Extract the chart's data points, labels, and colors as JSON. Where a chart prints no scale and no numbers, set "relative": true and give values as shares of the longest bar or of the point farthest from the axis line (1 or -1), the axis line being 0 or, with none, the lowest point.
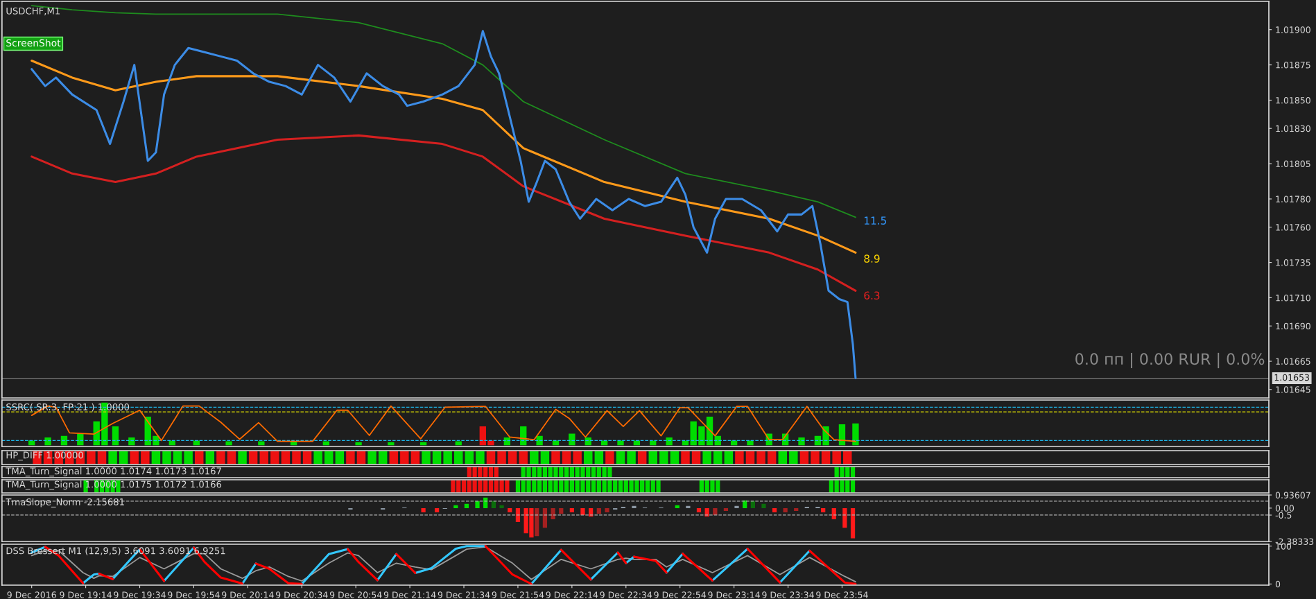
{
  "chart_data": [
    {
      "type": "line",
      "title": "USDCHF,M1",
      "xlim": [
        "2016-12-09T18:43",
        "2016-12-10T02:32"
      ],
      "ylim": [
        1.01639,
        1.0192
      ],
      "tick_labels": "y",
      "yticks": [
        {
          "value": 1.019,
          "label": "1.01900"
        },
        {
          "value": 1.01875,
          "label": "1.01875"
        },
        {
          "value": 1.0185,
          "label": "1.01850"
        },
        {
          "value": 1.0183,
          "label": "1.01830"
        },
        {
          "value": 1.01805,
          "label": "1.01805"
        },
        {
          "value": 1.0178,
          "label": "1.01780"
        },
        {
          "value": 1.0176,
          "label": "1.01760"
        },
        {
          "value": 1.01735,
          "label": "1.01735"
        },
        {
          "value": 1.0171,
          "label": "1.01710"
        },
        {
          "value": 1.0169,
          "label": "1.01690"
        },
        {
          "value": 1.01665,
          "label": "1.01665"
        },
        {
          "value": 1.01645,
          "label": "1.01645"
        }
      ],
      "series": [
        {
          "color": "#1e8c1e",
          "x": [
            "2016-12-09T18:54",
            "2016-12-09T19:09",
            "2016-12-09T19:25",
            "2016-12-09T19:40",
            "2016-12-09T19:55",
            "2016-12-09T20:25",
            "2016-12-09T20:55",
            "2016-12-09T21:26",
            "2016-12-09T21:41",
            "2016-12-09T21:56",
            "2016-12-09T22:26",
            "2016-12-09T22:56",
            "2016-12-09T23:27",
            "2016-12-09T23:45",
            "2016-12-09T23:59"
          ],
          "values": [
            1.01917,
            1.01914,
            1.01912,
            1.01911,
            1.01911,
            1.01911,
            1.01905,
            1.0189,
            1.01875,
            1.01849,
            1.01822,
            1.01798,
            1.01786,
            1.01778,
            1.01767
          ]
        },
        {
          "color": "#ff9a1a",
          "x": [
            "2016-12-09T18:54",
            "2016-12-09T19:09",
            "2016-12-09T19:25",
            "2016-12-09T19:40",
            "2016-12-09T19:55",
            "2016-12-09T20:25",
            "2016-12-09T20:55",
            "2016-12-09T21:26",
            "2016-12-09T21:41",
            "2016-12-09T21:56",
            "2016-12-09T22:26",
            "2016-12-09T22:56",
            "2016-12-09T23:27",
            "2016-12-09T23:45",
            "2016-12-09T23:59"
          ],
          "values": [
            1.01878,
            1.01866,
            1.01857,
            1.01863,
            1.01867,
            1.01867,
            1.0186,
            1.01851,
            1.01843,
            1.01816,
            1.01792,
            1.01778,
            1.01766,
            1.01754,
            1.01742
          ]
        },
        {
          "color": "#d42020",
          "x": [
            "2016-12-09T18:54",
            "2016-12-09T19:09",
            "2016-12-09T19:25",
            "2016-12-09T19:40",
            "2016-12-09T19:55",
            "2016-12-09T20:25",
            "2016-12-09T20:55",
            "2016-12-09T21:26",
            "2016-12-09T21:41",
            "2016-12-09T21:56",
            "2016-12-09T22:26",
            "2016-12-09T22:56",
            "2016-12-09T23:27",
            "2016-12-09T23:45",
            "2016-12-09T23:59"
          ],
          "values": [
            1.0181,
            1.01798,
            1.01792,
            1.01798,
            1.0181,
            1.01822,
            1.01825,
            1.01819,
            1.0181,
            1.01789,
            1.01766,
            1.01754,
            1.01742,
            1.0173,
            1.01715
          ]
        },
        {
          "color": "#3c8ce6",
          "x": [
            "2016-12-09T18:54",
            "2016-12-09T18:59",
            "2016-12-09T19:03",
            "2016-12-09T19:09",
            "2016-12-09T19:18",
            "2016-12-09T19:23",
            "2016-12-09T19:28",
            "2016-12-09T19:32",
            "2016-12-09T19:37",
            "2016-12-09T19:40",
            "2016-12-09T19:43",
            "2016-12-09T19:47",
            "2016-12-09T19:52",
            "2016-12-09T19:58",
            "2016-12-09T20:04",
            "2016-12-09T20:10",
            "2016-12-09T20:16",
            "2016-12-09T20:22",
            "2016-12-09T20:28",
            "2016-12-09T20:34",
            "2016-12-09T20:40",
            "2016-12-09T20:46",
            "2016-12-09T20:52",
            "2016-12-09T20:58",
            "2016-12-09T21:04",
            "2016-12-09T21:10",
            "2016-12-09T21:13",
            "2016-12-09T21:19",
            "2016-12-09T21:26",
            "2016-12-09T21:32",
            "2016-12-09T21:38",
            "2016-12-09T21:41",
            "2016-12-09T21:44",
            "2016-12-09T21:47",
            "2016-12-09T21:50",
            "2016-12-09T21:55",
            "2016-12-09T21:58",
            "2016-12-09T22:01",
            "2016-12-09T22:04",
            "2016-12-09T22:08",
            "2016-12-09T22:13",
            "2016-12-09T22:17",
            "2016-12-09T22:23",
            "2016-12-09T22:29",
            "2016-12-09T22:35",
            "2016-12-09T22:41",
            "2016-12-09T22:47",
            "2016-12-09T22:53",
            "2016-12-09T22:56",
            "2016-12-09T22:59",
            "2016-12-09T23:04",
            "2016-12-09T23:07",
            "2016-12-09T23:11",
            "2016-12-09T23:17",
            "2016-12-09T23:24",
            "2016-12-09T23:30",
            "2016-12-09T23:34",
            "2016-12-09T23:39",
            "2016-12-09T23:43",
            "2016-12-09T23:46",
            "2016-12-09T23:49",
            "2016-12-09T23:53",
            "2016-12-09T23:56",
            "2016-12-09T23:58",
            "2016-12-09T23:59"
          ],
          "values": [
            1.01872,
            1.0186,
            1.01866,
            1.01854,
            1.01843,
            1.01819,
            1.01849,
            1.01875,
            1.01807,
            1.01813,
            1.01854,
            1.01875,
            1.01887,
            1.01884,
            1.01881,
            1.01878,
            1.01869,
            1.01863,
            1.0186,
            1.01854,
            1.01875,
            1.01866,
            1.01849,
            1.01869,
            1.0186,
            1.01854,
            1.01846,
            1.01849,
            1.01854,
            1.0186,
            1.01875,
            1.01899,
            1.01881,
            1.01869,
            1.01846,
            1.01807,
            1.01778,
            1.01792,
            1.01807,
            1.01801,
            1.01778,
            1.01766,
            1.0178,
            1.01772,
            1.0178,
            1.01775,
            1.01778,
            1.01795,
            1.01783,
            1.0176,
            1.01742,
            1.01766,
            1.0178,
            1.0178,
            1.01772,
            1.01757,
            1.01769,
            1.01769,
            1.01775,
            1.01748,
            1.01715,
            1.01709,
            1.01707,
            1.01677,
            1.01653
          ]
        }
      ],
      "ref_lines": [
        {
          "axis": "y",
          "value": 1.01653,
          "label": "1.01653",
          "color": "#7a7a7a",
          "line_style": "solid"
        }
      ],
      "annotations": [
        "ScreenShot",
        "0.0 пп | 0.00 RUR | 0.0%",
        "11.5",
        "8.9",
        "6.3"
      ]
    },
    {
      "type": "bar",
      "title": "SSRC( SR:3, FP:21 ) 1.0000",
      "relative": true,
      "xlim": [
        "2016-12-09T18:43",
        "2016-12-10T02:32"
      ],
      "tick_labels": false,
      "series": [
        {
          "x": [
            "2016-12-09T18:54",
            "2016-12-09T19:00",
            "2016-12-09T19:06",
            "2016-12-09T19:12",
            "2016-12-09T19:18",
            "2016-12-09T19:21",
            "2016-12-09T19:25",
            "2016-12-09T19:31",
            "2016-12-09T19:37",
            "2016-12-09T19:40",
            "2016-12-09T19:46",
            "2016-12-09T19:55",
            "2016-12-09T20:07",
            "2016-12-09T20:19",
            "2016-12-09T20:31",
            "2016-12-09T20:43",
            "2016-12-09T20:55",
            "2016-12-09T21:07",
            "2016-12-09T21:19",
            "2016-12-09T21:32",
            "2016-12-09T21:41",
            "2016-12-09T21:44",
            "2016-12-09T21:50",
            "2016-12-09T21:56",
            "2016-12-09T22:02",
            "2016-12-09T22:08",
            "2016-12-09T22:14",
            "2016-12-09T22:20",
            "2016-12-09T22:26",
            "2016-12-09T22:32",
            "2016-12-09T22:38",
            "2016-12-09T22:44",
            "2016-12-09T22:50",
            "2016-12-09T22:56",
            "2016-12-09T22:59",
            "2016-12-09T23:02",
            "2016-12-09T23:05",
            "2016-12-09T23:08",
            "2016-12-09T23:14",
            "2016-12-09T23:20",
            "2016-12-09T23:27",
            "2016-12-09T23:33",
            "2016-12-09T23:39",
            "2016-12-09T23:45",
            "2016-12-09T23:48",
            "2016-12-09T23:54",
            "2016-12-09T23:59"
          ],
          "values": [
            0.11,
            0.18,
            0.22,
            0.27,
            0.56,
            1,
            0.44,
            0.18,
            0.67,
            0.22,
            0.11,
            0.11,
            0.09,
            0.09,
            0.09,
            0.09,
            0.07,
            0.07,
            0.07,
            0.09,
            0.44,
            0.11,
            0.18,
            0.44,
            0.22,
            0.11,
            0.27,
            0.18,
            0.11,
            0.11,
            0.11,
            0.11,
            0.18,
            0.11,
            0.56,
            0.44,
            0.67,
            0.22,
            0.11,
            0.11,
            0.27,
            0.27,
            0.18,
            0.22,
            0.44,
            0.49,
            0.51
          ],
          "colors": [
            "#00dd00",
            "#00dd00",
            "#00dd00",
            "#00dd00",
            "#00dd00",
            "#00dd00",
            "#00dd00",
            "#00dd00",
            "#00dd00",
            "#00dd00",
            "#00dd00",
            "#00dd00",
            "#00dd00",
            "#00dd00",
            "#00dd00",
            "#00dd00",
            "#00dd00",
            "#00dd00",
            "#00dd00",
            "#00dd00",
            "#ee1111",
            "#ee1111",
            "#00dd00",
            "#00dd00",
            "#00dd00",
            "#00dd00",
            "#00dd00",
            "#00dd00",
            "#00dd00",
            "#00dd00",
            "#00dd00",
            "#00dd00",
            "#00dd00",
            "#00dd00",
            "#00dd00",
            "#00dd00",
            "#00dd00",
            "#00dd00",
            "#00dd00",
            "#00dd00",
            "#00dd00",
            "#00dd00",
            "#00dd00",
            "#00dd00",
            "#00dd00",
            "#00dd00",
            "#00dd00"
          ]
        },
        {
          "type": "line",
          "color": "#ff6a00",
          "x": [
            "2016-12-09T18:54",
            "2016-12-09T19:00",
            "2016-12-09T19:03",
            "2016-12-09T19:08",
            "2016-12-09T19:17",
            "2016-12-09T19:24",
            "2016-12-09T19:34",
            "2016-12-09T19:42",
            "2016-12-09T19:50",
            "2016-12-09T19:56",
            "2016-12-09T20:04",
            "2016-12-09T20:11",
            "2016-12-09T20:18",
            "2016-12-09T20:25",
            "2016-12-09T20:38",
            "2016-12-09T20:47",
            "2016-12-09T20:51",
            "2016-12-09T20:59",
            "2016-12-09T21:07",
            "2016-12-09T21:18",
            "2016-12-09T21:27",
            "2016-12-09T21:42",
            "2016-12-09T21:51",
            "2016-12-09T22:00",
            "2016-12-09T22:08",
            "2016-12-09T22:13",
            "2016-12-09T22:19",
            "2016-12-09T22:27",
            "2016-12-09T22:33",
            "2016-12-09T22:39",
            "2016-12-09T22:47",
            "2016-12-09T22:54",
            "2016-12-09T22:57",
            "2016-12-09T23:07",
            "2016-12-09T23:15",
            "2016-12-09T23:19",
            "2016-12-09T23:27",
            "2016-12-09T23:32",
            "2016-12-09T23:41",
            "2016-12-09T23:47",
            "2016-12-09T23:51",
            "2016-12-09T23:59"
          ],
          "values": [
            0.7,
            0.92,
            0.89,
            0.29,
            0.26,
            0.51,
            0.82,
            0.11,
            0.92,
            0.92,
            0.54,
            0.14,
            0.53,
            0.09,
            0.09,
            0.82,
            0.82,
            0.23,
            0.92,
            0.15,
            0.89,
            0.91,
            0.19,
            0.13,
            0.84,
            0.63,
            0.19,
            0.81,
            0.44,
            0.81,
            0.22,
            0.88,
            0.88,
            0.22,
            0.91,
            0.91,
            0.13,
            0.13,
            0.91,
            0.38,
            0.13,
            0.09
          ]
        }
      ],
      "ref_lines": [
        {
          "axis": "y",
          "value": 0.89,
          "color": "#1eb4e6",
          "line_style": "dashed"
        },
        {
          "axis": "y",
          "value": 0.78,
          "color": "#d8d800",
          "line_style": "dashed"
        },
        {
          "axis": "y",
          "value": 0.11,
          "color": "#1eb4e6",
          "line_style": "dashed"
        }
      ]
    },
    {
      "type": "bar",
      "title": "HP_DIFF 1.00000",
      "relative": true,
      "xlim": [
        "2016-12-09T18:43",
        "2016-12-10T02:32"
      ],
      "tick_labels": false,
      "series": [
        {
          "x": [
            "2016-12-09T18:56",
            "2016-12-09T19:00",
            "2016-12-09T19:04",
            "2016-12-09T19:08",
            "2016-12-09T19:12",
            "2016-12-09T19:16",
            "2016-12-09T19:20",
            "2016-12-09T19:24",
            "2016-12-09T19:28",
            "2016-12-09T19:32",
            "2016-12-09T19:36",
            "2016-12-09T19:40",
            "2016-12-09T19:44",
            "2016-12-09T19:48",
            "2016-12-09T19:52",
            "2016-12-09T19:56",
            "2016-12-09T20:00",
            "2016-12-09T20:04",
            "2016-12-09T20:08",
            "2016-12-09T20:12",
            "2016-12-09T20:16",
            "2016-12-09T20:20",
            "2016-12-09T20:24",
            "2016-12-09T20:28",
            "2016-12-09T20:32",
            "2016-12-09T20:36",
            "2016-12-09T20:40",
            "2016-12-09T20:44",
            "2016-12-09T20:48",
            "2016-12-09T20:52",
            "2016-12-09T20:56",
            "2016-12-09T21:00",
            "2016-12-09T21:04",
            "2016-12-09T21:08",
            "2016-12-09T21:12",
            "2016-12-09T21:16",
            "2016-12-09T21:20",
            "2016-12-09T21:24",
            "2016-12-09T21:28",
            "2016-12-09T21:32",
            "2016-12-09T21:36",
            "2016-12-09T21:40",
            "2016-12-09T21:44",
            "2016-12-09T21:48",
            "2016-12-09T21:52",
            "2016-12-09T21:56",
            "2016-12-09T22:00",
            "2016-12-09T22:04",
            "2016-12-09T22:08",
            "2016-12-09T22:12",
            "2016-12-09T22:16",
            "2016-12-09T22:20",
            "2016-12-09T22:24",
            "2016-12-09T22:28",
            "2016-12-09T22:32",
            "2016-12-09T22:36",
            "2016-12-09T22:40",
            "2016-12-09T22:44",
            "2016-12-09T22:48",
            "2016-12-09T22:52",
            "2016-12-09T22:56",
            "2016-12-09T23:00",
            "2016-12-09T23:04",
            "2016-12-09T23:08",
            "2016-12-09T23:12",
            "2016-12-09T23:16",
            "2016-12-09T23:20",
            "2016-12-09T23:24",
            "2016-12-09T23:28",
            "2016-12-09T23:32",
            "2016-12-09T23:36",
            "2016-12-09T23:40",
            "2016-12-09T23:44",
            "2016-12-09T23:48",
            "2016-12-09T23:52",
            "2016-12-09T23:56"
          ],
          "values": [
            1,
            1,
            1,
            1,
            1,
            1,
            1,
            1,
            1,
            1,
            1,
            1,
            1,
            1,
            1,
            1,
            1,
            1,
            1,
            1,
            1,
            1,
            1,
            1,
            1,
            1,
            1,
            1,
            1,
            1,
            1,
            1,
            1,
            1,
            1,
            1,
            1,
            1,
            1,
            1,
            1,
            1,
            1,
            1,
            1,
            1,
            1,
            1,
            1,
            1,
            1,
            1,
            1,
            1,
            1,
            1,
            1,
            1,
            1,
            1,
            1,
            1,
            1,
            1,
            1,
            1,
            1,
            1,
            1,
            1,
            1,
            1,
            1,
            1,
            1,
            1
          ],
          "colors": [
            "#ee1111",
            "#ee1111",
            "#ee1111",
            "#ee1111",
            "#ee1111",
            "#ee1111",
            "#ee1111",
            "#00dd00",
            "#00dd00",
            "#ee1111",
            "#ee1111",
            "#00dd00",
            "#00dd00",
            "#00dd00",
            "#00dd00",
            "#ee1111",
            "#00dd00",
            "#ee1111",
            "#ee1111",
            "#00dd00",
            "#ee1111",
            "#ee1111",
            "#ee1111",
            "#ee1111",
            "#ee1111",
            "#ee1111",
            "#00dd00",
            "#00dd00",
            "#00dd00",
            "#ee1111",
            "#ee1111",
            "#00dd00",
            "#00dd00",
            "#ee1111",
            "#ee1111",
            "#ee1111",
            "#00dd00",
            "#00dd00",
            "#00dd00",
            "#00dd00",
            "#00dd00",
            "#00dd00",
            "#ee1111",
            "#ee1111",
            "#ee1111",
            "#ee1111",
            "#00dd00",
            "#00dd00",
            "#ee1111",
            "#ee1111",
            "#ee1111",
            "#00dd00",
            "#00dd00",
            "#ee1111",
            "#00dd00",
            "#00dd00",
            "#ee1111",
            "#00dd00",
            "#00dd00",
            "#00dd00",
            "#ee1111",
            "#ee1111",
            "#00dd00",
            "#00dd00",
            "#00dd00",
            "#ee1111",
            "#ee1111",
            "#ee1111",
            "#ee1111",
            "#00dd00",
            "#00dd00",
            "#ee1111",
            "#ee1111",
            "#ee1111",
            "#ee1111",
            "#ee1111"
          ]
        }
      ]
    },
    {
      "type": "bar",
      "title": "TMA_Turn_Signal 1.0000 1.0174 1.0173 1.0167",
      "relative": true,
      "xlim": [
        "2016-12-09T18:43",
        "2016-12-10T02:32"
      ],
      "tick_labels": false,
      "series": [
        {
          "x": [
            "2016-12-09T21:36",
            "2016-12-09T21:38",
            "2016-12-09T21:40",
            "2016-12-09T21:42",
            "2016-12-09T21:44",
            "2016-12-09T21:46",
            "2016-12-09T21:56",
            "2016-12-09T21:58",
            "2016-12-09T22:00",
            "2016-12-09T22:02",
            "2016-12-09T22:04",
            "2016-12-09T22:06",
            "2016-12-09T22:08",
            "2016-12-09T22:10",
            "2016-12-09T22:12",
            "2016-12-09T22:14",
            "2016-12-09T22:16",
            "2016-12-09T22:18",
            "2016-12-09T22:20",
            "2016-12-09T22:22",
            "2016-12-09T22:24",
            "2016-12-09T22:26",
            "2016-12-09T22:28",
            "2016-12-09T23:52",
            "2016-12-09T23:54",
            "2016-12-09T23:56",
            "2016-12-09T23:58"
          ],
          "values": [
            1,
            1,
            1,
            1,
            1,
            1,
            1,
            1,
            1,
            1,
            1,
            1,
            1,
            1,
            1,
            1,
            1,
            1,
            1,
            1,
            1,
            1,
            1,
            1,
            1,
            1,
            1
          ],
          "colors": [
            "#ee1111",
            "#ee1111",
            "#ee1111",
            "#ee1111",
            "#ee1111",
            "#ee1111",
            "#00dd00",
            "#00dd00",
            "#00dd00",
            "#00dd00",
            "#00dd00",
            "#00dd00",
            "#00dd00",
            "#00dd00",
            "#00dd00",
            "#00dd00",
            "#00dd00",
            "#00dd00",
            "#00dd00",
            "#00dd00",
            "#00dd00",
            "#00dd00",
            "#00dd00",
            "#00dd00",
            "#00dd00",
            "#00dd00",
            "#00dd00"
          ]
        }
      ]
    },
    {
      "type": "bar",
      "title": "TMA_Turn_Signal 1.0000 1.0175 1.0172 1.0166",
      "relative": true,
      "xlim": [
        "2016-12-09T18:43",
        "2016-12-10T02:32"
      ],
      "tick_labels": false,
      "series": [
        {
          "x": [
            "2016-12-09T19:14",
            "2016-12-09T19:18",
            "2016-12-09T19:20",
            "2016-12-09T19:22",
            "2016-12-09T19:24",
            "2016-12-09T19:26",
            "2016-12-09T21:30",
            "2016-12-09T21:32",
            "2016-12-09T21:34",
            "2016-12-09T21:36",
            "2016-12-09T21:38",
            "2016-12-09T21:40",
            "2016-12-09T21:42",
            "2016-12-09T21:44",
            "2016-12-09T21:46",
            "2016-12-09T21:48",
            "2016-12-09T21:50",
            "2016-12-09T21:54",
            "2016-12-09T21:56",
            "2016-12-09T21:58",
            "2016-12-09T22:00",
            "2016-12-09T22:02",
            "2016-12-09T22:04",
            "2016-12-09T22:06",
            "2016-12-09T22:08",
            "2016-12-09T22:10",
            "2016-12-09T22:12",
            "2016-12-09T22:14",
            "2016-12-09T22:16",
            "2016-12-09T22:18",
            "2016-12-09T22:20",
            "2016-12-09T22:22",
            "2016-12-09T22:24",
            "2016-12-09T22:26",
            "2016-12-09T22:28",
            "2016-12-09T22:30",
            "2016-12-09T22:32",
            "2016-12-09T22:34",
            "2016-12-09T22:36",
            "2016-12-09T22:38",
            "2016-12-09T22:40",
            "2016-12-09T22:42",
            "2016-12-09T22:44",
            "2016-12-09T22:46",
            "2016-12-09T23:02",
            "2016-12-09T23:04",
            "2016-12-09T23:06",
            "2016-12-09T23:08",
            "2016-12-09T23:50",
            "2016-12-09T23:52",
            "2016-12-09T23:54",
            "2016-12-09T23:56",
            "2016-12-09T23:58"
          ],
          "values": [
            1,
            1,
            1,
            1,
            1,
            1,
            1,
            1,
            1,
            1,
            1,
            1,
            1,
            1,
            1,
            1,
            1,
            1,
            1,
            1,
            1,
            1,
            1,
            1,
            1,
            1,
            1,
            1,
            1,
            1,
            1,
            1,
            1,
            1,
            1,
            1,
            1,
            1,
            1,
            1,
            1,
            1,
            1,
            1,
            1,
            1,
            1,
            1,
            1,
            1,
            1,
            1,
            1
          ],
          "colors": [
            "#00dd00",
            "#00dd00",
            "#00dd00",
            "#00dd00",
            "#00dd00",
            "#00dd00",
            "#ee1111",
            "#ee1111",
            "#ee1111",
            "#ee1111",
            "#ee1111",
            "#ee1111",
            "#ee1111",
            "#ee1111",
            "#ee1111",
            "#ee1111",
            "#ee1111",
            "#00dd00",
            "#00dd00",
            "#00dd00",
            "#00dd00",
            "#00dd00",
            "#00dd00",
            "#00dd00",
            "#00dd00",
            "#00dd00",
            "#00dd00",
            "#00dd00",
            "#00dd00",
            "#00dd00",
            "#00dd00",
            "#00dd00",
            "#00dd00",
            "#00dd00",
            "#00dd00",
            "#00dd00",
            "#00dd00",
            "#00dd00",
            "#00dd00",
            "#00dd00",
            "#00dd00",
            "#00dd00",
            "#00dd00",
            "#00dd00",
            "#00dd00",
            "#00dd00",
            "#00dd00",
            "#00dd00",
            "#00dd00",
            "#00dd00",
            "#00dd00",
            "#00dd00",
            "#00dd00"
          ]
        }
      ]
    },
    {
      "type": "bar",
      "title": "TmaSlope_Norm -2.15681",
      "xlim": [
        "2016-12-09T18:43",
        "2016-12-10T02:32"
      ],
      "ylim": [
        -2.38333,
        0.93607
      ],
      "tick_labels": "y",
      "yticks": [
        {
          "value": 0.93607,
          "label": "0.93607"
        },
        {
          "value": 0,
          "label": "0.00"
        },
        -0.5,
        -2.38333
      ],
      "series": [
        {
          "x": [
            "2016-12-09T20:52",
            "2016-12-09T21:04",
            "2016-12-09T21:12",
            "2016-12-09T21:19",
            "2016-12-09T21:24",
            "2016-12-09T21:27",
            "2016-12-09T21:31",
            "2016-12-09T21:35",
            "2016-12-09T21:39",
            "2016-12-09T21:42",
            "2016-12-09T21:45",
            "2016-12-09T21:48",
            "2016-12-09T21:51",
            "2016-12-09T21:54",
            "2016-12-09T21:57",
            "2016-12-09T21:59",
            "2016-12-09T22:01",
            "2016-12-09T22:04",
            "2016-12-09T22:07",
            "2016-12-09T22:10",
            "2016-12-09T22:14",
            "2016-12-09T22:18",
            "2016-12-09T22:21",
            "2016-12-09T22:24",
            "2016-12-09T22:27",
            "2016-12-09T22:30",
            "2016-12-09T22:33",
            "2016-12-09T22:37",
            "2016-12-09T22:41",
            "2016-12-09T22:47",
            "2016-12-09T22:53",
            "2016-12-09T22:57",
            "2016-12-09T23:01",
            "2016-12-09T23:04",
            "2016-12-09T23:07",
            "2016-12-09T23:11",
            "2016-12-09T23:15",
            "2016-12-09T23:18",
            "2016-12-09T23:21",
            "2016-12-09T23:25",
            "2016-12-09T23:29",
            "2016-12-09T23:33",
            "2016-12-09T23:37",
            "2016-12-09T23:41",
            "2016-12-09T23:45",
            "2016-12-09T23:47",
            "2016-12-09T23:51",
            "2016-12-09T23:55",
            "2016-12-09T23:58"
          ],
          "values": [
            -0.1,
            -0.1,
            0.05,
            -0.3,
            -0.3,
            -0.05,
            0.2,
            0.3,
            0.5,
            0.75,
            0.5,
            0.2,
            -0.3,
            -1.0,
            -1.8,
            -2.1,
            -2.0,
            -1.4,
            -0.8,
            -0.4,
            -0.3,
            -0.5,
            -0.6,
            -0.4,
            -0.3,
            -0.1,
            0.1,
            0.15,
            0.05,
            0.05,
            0.2,
            0.15,
            -0.3,
            -0.6,
            -0.5,
            -0.2,
            0.15,
            0.55,
            0.5,
            0.3,
            -0.3,
            -0.3,
            -0.2,
            0.1,
            0.1,
            -0.3,
            -0.8,
            -1.4,
            -2.16
          ],
          "colors": [
            "#8c98a4",
            "#8c98a4",
            "#8c98a4",
            "#ff1a1a",
            "#ff1a1a",
            "#8c98a4",
            "#00e000",
            "#00e000",
            "#00e000",
            "#00e000",
            "#0b6e0b",
            "#0b6e0b",
            "#ff1a1a",
            "#ff1a1a",
            "#ff1a1a",
            "#ff1a1a",
            "#a52020",
            "#a52020",
            "#a52020",
            "#a52020",
            "#ff1a1a",
            "#ff1a1a",
            "#ff1a1a",
            "#a52020",
            "#a52020",
            "#8c98a4",
            "#8c98a4",
            "#8c98a4",
            "#8c98a4",
            "#8c98a4",
            "#00e000",
            "#8c98a4",
            "#ff1a1a",
            "#ff1a1a",
            "#a52020",
            "#a52020",
            "#8c98a4",
            "#00e000",
            "#0b6e0b",
            "#0b6e0b",
            "#ff1a1a",
            "#a52020",
            "#a52020",
            "#8c98a4",
            "#8c98a4",
            "#ff1a1a",
            "#ff1a1a",
            "#ff1a1a",
            "#ff1a1a"
          ]
        }
      ],
      "ref_lines": [
        {
          "axis": "y",
          "value": 0.5,
          "color": "#b0b0b0",
          "line_style": "dashed"
        },
        {
          "axis": "y",
          "value": -0.5,
          "color": "#b0b0b0",
          "line_style": "dashed"
        }
      ]
    },
    {
      "type": "line",
      "title": "DSS Bressert M1 (12,9,5) 3.6091 3.6091 6.9251",
      "xlim": [
        "2016-12-09T18:43",
        "2016-12-10T02:32"
      ],
      "ylim": [
        -3,
        105
      ],
      "yticks": [
        0,
        100
      ],
      "xticks": [
        {
          "value": "2016-12-09T18:54",
          "label": "9 Dec 2016"
        },
        {
          "value": "2016-12-09T19:14",
          "label": "9 Dec 19:14"
        },
        {
          "value": "2016-12-09T19:34",
          "label": "9 Dec 19:34"
        },
        {
          "value": "2016-12-09T19:54",
          "label": "9 Dec 19:54"
        },
        {
          "value": "2016-12-09T20:14",
          "label": "9 Dec 20:14"
        },
        {
          "value": "2016-12-09T20:34",
          "label": "9 Dec 20:34"
        },
        {
          "value": "2016-12-09T20:54",
          "label": "9 Dec 20:54"
        },
        {
          "value": "2016-12-09T21:14",
          "label": "9 Dec 21:14"
        },
        {
          "value": "2016-12-09T21:34",
          "label": "9 Dec 21:34"
        },
        {
          "value": "2016-12-09T21:54",
          "label": "9 Dec 21:54"
        },
        {
          "value": "2016-12-09T22:14",
          "label": "9 Dec 22:14"
        },
        {
          "value": "2016-12-09T22:34",
          "label": "9 Dec 22:34"
        },
        {
          "value": "2016-12-09T22:54",
          "label": "9 Dec 22:54"
        },
        {
          "value": "2016-12-09T23:14",
          "label": "9 Dec 23:14"
        },
        {
          "value": "2016-12-09T23:34",
          "label": "9 Dec 23:34"
        },
        {
          "value": "2016-12-09T23:54",
          "label": "9 Dec 23:54"
        }
      ],
      "series": [
        {
          "color": "#9a9a9a",
          "x": [
            "2016-12-09T18:54",
            "2016-12-09T18:59",
            "2016-12-09T19:04",
            "2016-12-09T19:13",
            "2016-12-09T19:17",
            "2016-12-09T19:19",
            "2016-12-09T19:24",
            "2016-12-09T19:34",
            "2016-12-09T19:43",
            "2016-12-09T19:54",
            "2016-12-09T19:58",
            "2016-12-09T20:04",
            "2016-12-09T20:12",
            "2016-12-09T20:17",
            "2016-12-09T20:22",
            "2016-12-09T20:29",
            "2016-12-09T20:34",
            "2016-12-09T20:44",
            "2016-12-09T20:51",
            "2016-12-09T20:55",
            "2016-12-09T21:02",
            "2016-12-09T21:09",
            "2016-12-09T21:16",
            "2016-12-09T21:22",
            "2016-12-09T21:31",
            "2016-12-09T21:35",
            "2016-12-09T21:42",
            "2016-12-09T21:52",
            "2016-12-09T21:59",
            "2016-12-09T22:10",
            "2016-12-09T22:21",
            "2016-12-09T22:31",
            "2016-12-09T22:34",
            "2016-12-09T22:37",
            "2016-12-09T22:45",
            "2016-12-09T22:49",
            "2016-12-09T22:55",
            "2016-12-09T23:06",
            "2016-12-09T23:19",
            "2016-12-09T23:31",
            "2016-12-09T23:42",
            "2016-12-09T23:55",
            "2016-12-09T23:59"
          ],
          "values": [
            75,
            88,
            88,
            30,
            15,
            22,
            20,
            70,
            40,
            80,
            80,
            40,
            15,
            35,
            45,
            20,
            8,
            55,
            82,
            75,
            30,
            55,
            45,
            38,
            75,
            92,
            98,
            55,
            12,
            65,
            40,
            65,
            68,
            65,
            65,
            45,
            65,
            30,
            75,
            25,
            70,
            20,
            6
          ]
        },
        {
          "color": "#33c8ff",
          "x": [
            "2016-12-09T18:54",
            "2016-12-09T18:59",
            "2016-12-09T19:06",
            "2016-12-09T19:13",
            "2016-12-09T19:17",
            "2016-12-09T19:19",
            "2016-12-09T19:21",
            "2016-12-09T19:24",
            "2016-12-09T19:34",
            "2016-12-09T19:38",
            "2016-12-09T19:43",
            "2016-12-09T19:54",
            "2016-12-09T20:00",
            "2016-12-09T20:12",
            "2016-12-09T20:17",
            "2016-12-09T20:25",
            "2016-12-09T20:34",
            "2016-12-09T20:44",
            "2016-12-09T20:51",
            "2016-12-09T20:58",
            "2016-12-09T21:02",
            "2016-12-09T21:09",
            "2016-12-09T21:12",
            "2016-12-09T21:16",
            "2016-12-09T21:22",
            "2016-12-09T21:31",
            "2016-12-09T21:35",
            "2016-12-09T21:42",
            "2016-12-09T21:55",
            "2016-12-09T21:59",
            "2016-12-09T22:10",
            "2016-12-09T22:15",
            "2016-12-09T22:21",
            "2016-12-09T22:31",
            "2016-12-09T22:33",
            "2016-12-09T22:34",
            "2016-12-09T22:37",
            "2016-12-09T22:40",
            "2016-12-09T22:49",
            "2016-12-09T22:55",
            "2016-12-09T23:00",
            "2016-12-09T23:06",
            "2016-12-09T23:19",
            "2016-12-09T23:25",
            "2016-12-09T23:31",
            "2016-12-09T23:42"
          ],
          "values": [
            83,
            98,
            null,
            2,
            25,
            27,
            null,
            13,
            92,
            null,
            8,
            96,
            null,
            1,
            54,
            null,
            0,
            79,
            92,
            null,
            10,
            79,
            null,
            29,
            42,
            93,
            100,
            100,
            null,
            0,
            90,
            null,
            12,
            83,
            null,
            55,
            72,
            null,
            30,
            80,
            null,
            9,
            93,
            null,
            4,
            88
          ]
        },
        {
          "color": "#ff0000",
          "x": [
            "2016-12-09T18:59",
            "2016-12-09T19:04",
            "2016-12-09T19:13",
            "2016-12-09T19:18",
            "2016-12-09T19:19",
            "2016-12-09T19:24",
            "2016-12-09T19:29",
            "2016-12-09T19:34",
            "2016-12-09T19:43",
            "2016-12-09T19:48",
            "2016-12-09T19:54",
            "2016-12-09T19:58",
            "2016-12-09T20:04",
            "2016-12-09T20:12",
            "2016-12-09T20:15",
            "2016-12-09T20:17",
            "2016-12-09T20:22",
            "2016-12-09T20:29",
            "2016-12-09T20:34",
            "2016-12-09T20:40",
            "2016-12-09T20:51",
            "2016-12-09T20:55",
            "2016-12-09T21:02",
            "2016-12-09T21:05",
            "2016-12-09T21:09",
            "2016-12-09T21:16",
            "2016-12-09T21:25",
            "2016-12-09T21:42",
            "2016-12-09T21:52",
            "2016-12-09T21:59",
            "2016-12-09T22:05",
            "2016-12-09T22:10",
            "2016-12-09T22:21",
            "2016-12-09T22:26",
            "2016-12-09T22:31",
            "2016-12-09T22:34",
            "2016-12-09T22:35",
            "2016-12-09T22:37",
            "2016-12-09T22:45",
            "2016-12-09T22:49",
            "2016-12-09T22:52",
            "2016-12-09T22:55",
            "2016-12-09T23:06",
            "2016-12-09T23:12",
            "2016-12-09T23:19",
            "2016-12-09T23:31",
            "2016-12-09T23:36",
            "2016-12-09T23:42",
            "2016-12-09T23:55",
            "2016-12-09T23:59"
          ],
          "values": [
            98,
            75,
            2,
            null,
            27,
            13,
            null,
            92,
            8,
            null,
            96,
            58,
            17,
            1,
            null,
            54,
            40,
            2,
            0,
            null,
            92,
            58,
            10,
            null,
            79,
            29,
            null,
            100,
            25,
            0,
            null,
            90,
            12,
            null,
            83,
            55,
            null,
            72,
            61,
            30,
            null,
            80,
            9,
            null,
            93,
            4,
            null,
            88,
            4,
            0
          ]
        }
      ]
    }
  ]
}
